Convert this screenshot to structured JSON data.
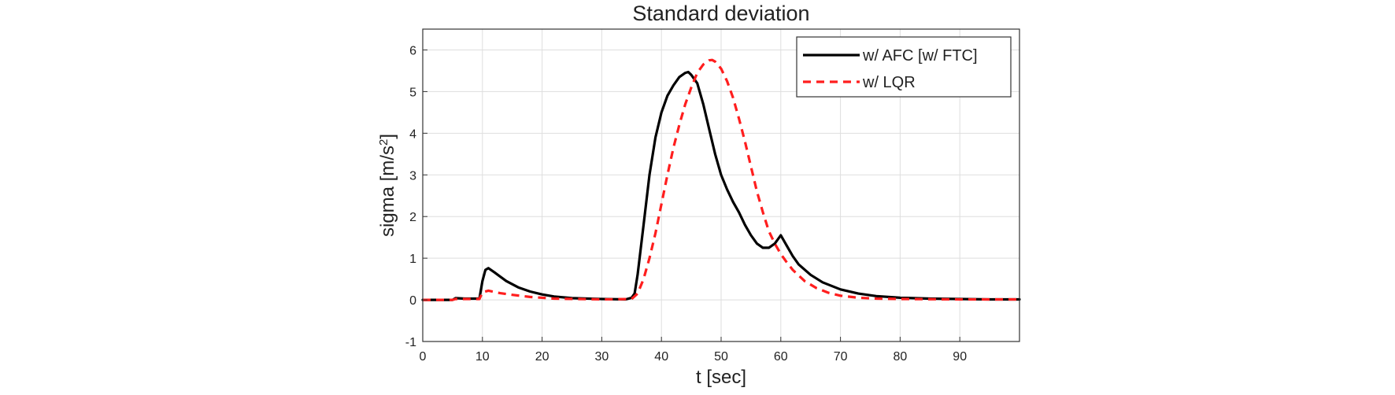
{
  "chart_data": {
    "type": "line",
    "title": "Standard deviation",
    "xlabel": "t [sec]",
    "ylabel": "sigma [m/s",
    "ylabel_superscript": "2",
    "ylabel_suffix": "]",
    "xlim": [
      0,
      100
    ],
    "ylim": [
      -1,
      6.5
    ],
    "x_ticks": [
      0,
      10,
      20,
      30,
      40,
      50,
      60,
      70,
      80,
      90
    ],
    "y_ticks": [
      -1,
      0,
      1,
      2,
      3,
      4,
      5,
      6
    ],
    "grid": true,
    "legend_position": "top-right",
    "series": [
      {
        "name": "w/ AFC [w/ FTC]",
        "color": "#000000",
        "style": "solid",
        "points": [
          [
            0,
            0
          ],
          [
            5,
            0
          ],
          [
            5.5,
            0.04
          ],
          [
            7,
            0.03
          ],
          [
            9.5,
            0.03
          ],
          [
            10,
            0.45
          ],
          [
            10.5,
            0.72
          ],
          [
            11,
            0.76
          ],
          [
            12,
            0.66
          ],
          [
            14,
            0.45
          ],
          [
            16,
            0.3
          ],
          [
            18,
            0.2
          ],
          [
            20,
            0.13
          ],
          [
            22,
            0.08
          ],
          [
            25,
            0.04
          ],
          [
            30,
            0.02
          ],
          [
            34,
            0.01
          ],
          [
            35,
            0.05
          ],
          [
            35.5,
            0.15
          ],
          [
            36,
            0.6
          ],
          [
            37,
            1.8
          ],
          [
            38,
            3.0
          ],
          [
            39,
            3.9
          ],
          [
            40,
            4.5
          ],
          [
            41,
            4.9
          ],
          [
            42,
            5.15
          ],
          [
            43,
            5.35
          ],
          [
            44,
            5.45
          ],
          [
            44.5,
            5.47
          ],
          [
            45,
            5.4
          ],
          [
            46,
            5.2
          ],
          [
            47,
            4.7
          ],
          [
            48,
            4.1
          ],
          [
            49,
            3.5
          ],
          [
            50,
            3.0
          ],
          [
            51,
            2.65
          ],
          [
            52,
            2.35
          ],
          [
            53,
            2.1
          ],
          [
            54,
            1.8
          ],
          [
            55,
            1.55
          ],
          [
            56,
            1.35
          ],
          [
            57,
            1.25
          ],
          [
            58,
            1.25
          ],
          [
            59,
            1.35
          ],
          [
            60,
            1.55
          ],
          [
            61,
            1.3
          ],
          [
            62,
            1.05
          ],
          [
            63,
            0.85
          ],
          [
            65,
            0.6
          ],
          [
            67,
            0.42
          ],
          [
            70,
            0.25
          ],
          [
            73,
            0.15
          ],
          [
            76,
            0.09
          ],
          [
            80,
            0.05
          ],
          [
            85,
            0.03
          ],
          [
            90,
            0.02
          ],
          [
            95,
            0.01
          ],
          [
            100,
            0.01
          ]
        ]
      },
      {
        "name": "w/ LQR",
        "color": "#ff1e1e",
        "style": "dashed",
        "points": [
          [
            0,
            0
          ],
          [
            5,
            0
          ],
          [
            5.5,
            0.02
          ],
          [
            9.5,
            0.02
          ],
          [
            10,
            0.18
          ],
          [
            11,
            0.22
          ],
          [
            13,
            0.16
          ],
          [
            15,
            0.12
          ],
          [
            18,
            0.07
          ],
          [
            22,
            0.03
          ],
          [
            26,
            0.02
          ],
          [
            30,
            0.01
          ],
          [
            35,
            0.02
          ],
          [
            36,
            0.15
          ],
          [
            37,
            0.5
          ],
          [
            38,
            1.0
          ],
          [
            39,
            1.6
          ],
          [
            40,
            2.3
          ],
          [
            41,
            3.0
          ],
          [
            42,
            3.65
          ],
          [
            43,
            4.2
          ],
          [
            44,
            4.7
          ],
          [
            45,
            5.1
          ],
          [
            46,
            5.45
          ],
          [
            47,
            5.65
          ],
          [
            48,
            5.75
          ],
          [
            48.5,
            5.76
          ],
          [
            49,
            5.72
          ],
          [
            50,
            5.55
          ],
          [
            51,
            5.25
          ],
          [
            52,
            4.85
          ],
          [
            53,
            4.35
          ],
          [
            54,
            3.8
          ],
          [
            55,
            3.2
          ],
          [
            56,
            2.6
          ],
          [
            57,
            2.1
          ],
          [
            58,
            1.65
          ],
          [
            59,
            1.35
          ],
          [
            60,
            1.1
          ],
          [
            61,
            0.9
          ],
          [
            62,
            0.72
          ],
          [
            64,
            0.45
          ],
          [
            66,
            0.28
          ],
          [
            68,
            0.17
          ],
          [
            70,
            0.1
          ],
          [
            73,
            0.05
          ],
          [
            76,
            0.03
          ],
          [
            80,
            0.02
          ],
          [
            90,
            0.01
          ],
          [
            100,
            0.01
          ]
        ]
      }
    ]
  }
}
